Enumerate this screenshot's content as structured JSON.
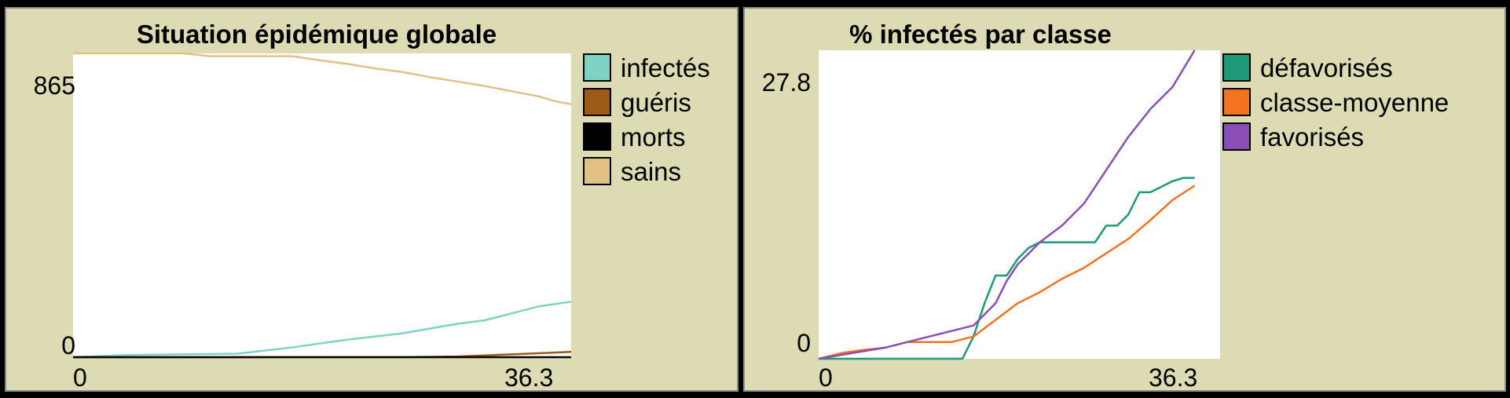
{
  "chart_data": [
    {
      "type": "line",
      "title": "Situation épidémique globale",
      "xlabel": "",
      "ylabel": "",
      "xlim": [
        0,
        36.3
      ],
      "ylim": [
        0,
        865
      ],
      "x_ticks": [
        "0",
        "36.3"
      ],
      "y_ticks": [
        "865",
        "0"
      ],
      "legend_position": "right",
      "series": [
        {
          "name": "infectés",
          "color": "#7fd3c4",
          "x": [
            0,
            4,
            8,
            12,
            16,
            20,
            24,
            28,
            30,
            32,
            34,
            36.3
          ],
          "y": [
            0,
            6,
            8,
            10,
            28,
            50,
            68,
            95,
            105,
            125,
            145,
            158
          ]
        },
        {
          "name": "guéris",
          "color": "#9c5a17",
          "x": [
            0,
            20,
            24,
            28,
            32,
            36.3
          ],
          "y": [
            0,
            0,
            0,
            2,
            8,
            15
          ]
        },
        {
          "name": "morts",
          "color": "#000000",
          "x": [
            0,
            36.3
          ],
          "y": [
            0,
            0
          ]
        },
        {
          "name": "sains",
          "color": "#e1c184",
          "x": [
            0,
            8,
            10,
            12,
            16,
            18,
            20,
            22,
            24,
            26,
            28,
            30,
            32,
            34,
            35,
            36.3
          ],
          "y": [
            865,
            865,
            857,
            857,
            857,
            845,
            835,
            822,
            812,
            797,
            785,
            772,
            757,
            742,
            730,
            720
          ]
        }
      ]
    },
    {
      "type": "line",
      "title": "% infectés par classe",
      "xlabel": "",
      "ylabel": "",
      "xlim": [
        0,
        36.3
      ],
      "ylim": [
        0,
        27.8
      ],
      "x_ticks": [
        "0",
        "36.3"
      ],
      "y_ticks": [
        "27.8",
        "0"
      ],
      "legend_position": "right",
      "series": [
        {
          "name": "défavorisés",
          "color": "#1d9a78",
          "x": [
            0,
            13,
            14,
            15,
            16,
            17,
            18,
            19,
            20,
            22,
            25,
            26,
            27,
            28,
            29,
            30,
            31,
            32,
            33,
            34
          ],
          "y": [
            0,
            0,
            2,
            5,
            7.5,
            7.5,
            9,
            10,
            10.5,
            10.5,
            10.5,
            12,
            12,
            13,
            15,
            15,
            15.5,
            16,
            16.3,
            16.3
          ]
        },
        {
          "name": "classe-moyenne",
          "color": "#f47320",
          "x": [
            0,
            2,
            4,
            6,
            8,
            10,
            12,
            14,
            16,
            18,
            20,
            22,
            24,
            26,
            28,
            30,
            32,
            34
          ],
          "y": [
            0,
            0.5,
            0.8,
            1,
            1.5,
            1.5,
            1.5,
            2,
            3.5,
            5,
            6,
            7.2,
            8.2,
            9.5,
            10.8,
            12.5,
            14.3,
            15.6
          ]
        },
        {
          "name": "favorisés",
          "color": "#8a4fb5",
          "x": [
            0,
            3,
            6,
            8,
            10,
            12,
            14,
            15,
            16,
            17,
            18,
            19,
            20,
            22,
            24,
            26,
            28,
            30,
            32,
            34
          ],
          "y": [
            0,
            0.5,
            1,
            1.5,
            2,
            2.5,
            3,
            4,
            5,
            7,
            8.5,
            9.5,
            10.5,
            12,
            14,
            17,
            20,
            22.5,
            24.5,
            27.8
          ]
        }
      ]
    }
  ]
}
